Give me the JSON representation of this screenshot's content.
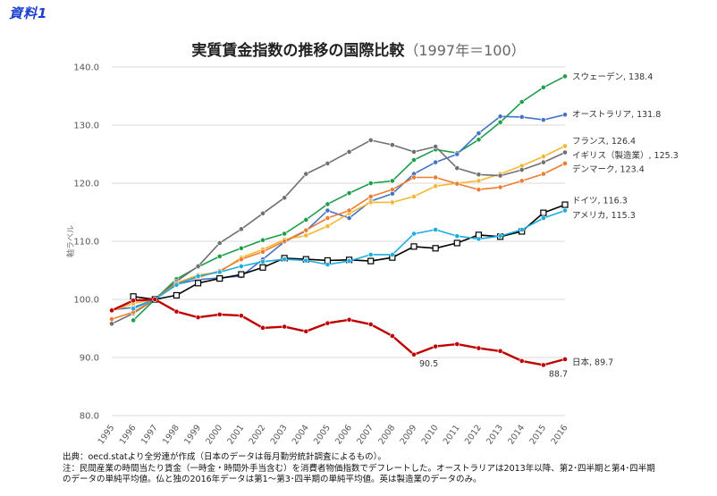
{
  "doc_label": "資料1",
  "chart_data": {
    "type": "line",
    "title": "実質賃金指数の推移の国際比較",
    "subtitle": "（1997年＝100）",
    "xlabel": "",
    "ylabel": "軸ラベル",
    "ylim": [
      80,
      140
    ],
    "yticks": [
      "80.0",
      "90.0",
      "100.0",
      "110.0",
      "120.0",
      "130.0",
      "140.0"
    ],
    "grid": true,
    "categories": [
      "1995",
      "1996",
      "1997",
      "1998",
      "1999",
      "2000",
      "2001",
      "2002",
      "2003",
      "2004",
      "2005",
      "2006",
      "2007",
      "2008",
      "2009",
      "2010",
      "2011",
      "2012",
      "2013",
      "2014",
      "2015",
      "2016"
    ],
    "series": [
      {
        "name": "スウェーデン",
        "end_label": "スウェーデン, 138.4",
        "color": "#1e9e4a",
        "marker": "dot",
        "values": [
          null,
          96.4,
          100.0,
          103.5,
          105.6,
          107.4,
          108.8,
          110.2,
          111.3,
          113.7,
          116.4,
          118.3,
          120.0,
          120.4,
          124.0,
          125.8,
          125.2,
          127.5,
          130.5,
          134.0,
          136.5,
          138.4
        ]
      },
      {
        "name": "オーストラリア",
        "end_label": "オーストラリア, 131.8",
        "color": "#4472c4",
        "marker": "dot",
        "values": [
          98.2,
          98.6,
          100.0,
          102.6,
          103.4,
          103.7,
          104.0,
          106.9,
          109.9,
          111.8,
          115.3,
          114.0,
          116.9,
          118.2,
          121.6,
          123.6,
          125.0,
          128.6,
          131.5,
          131.4,
          130.9,
          131.8
        ]
      },
      {
        "name": "フランス",
        "end_label": "フランス, 126.4",
        "color": "#f5b731",
        "marker": "dot",
        "values": [
          98.0,
          99.3,
          100.0,
          102.8,
          104.2,
          104.7,
          107.2,
          108.6,
          110.3,
          111.0,
          112.6,
          114.8,
          116.7,
          116.7,
          117.7,
          119.5,
          120.0,
          120.4,
          121.6,
          123.0,
          124.6,
          126.4
        ]
      },
      {
        "name": "イギリス（製造業）",
        "end_label": "イギリス（製造業）, 125.3",
        "color": "#707070",
        "marker": "dot",
        "values": [
          95.8,
          97.6,
          100.0,
          103.1,
          105.7,
          109.7,
          112.1,
          114.8,
          117.5,
          121.6,
          123.4,
          125.4,
          127.4,
          126.6,
          125.4,
          126.3,
          122.6,
          121.5,
          121.3,
          122.3,
          123.6,
          125.3
        ]
      },
      {
        "name": "デンマーク",
        "end_label": "デンマーク, 123.4",
        "color": "#ed7d31",
        "marker": "dot",
        "values": [
          96.6,
          97.8,
          100.0,
          102.8,
          103.8,
          104.9,
          106.9,
          108.2,
          110.0,
          111.9,
          114.0,
          115.3,
          117.7,
          118.9,
          121.0,
          121.0,
          119.9,
          118.9,
          119.3,
          120.4,
          121.6,
          123.4
        ]
      },
      {
        "name": "ドイツ",
        "end_label": "ドイツ, 116.3",
        "color": "#000000",
        "marker": "square",
        "values": [
          null,
          100.5,
          100.0,
          100.7,
          102.8,
          103.6,
          104.3,
          105.5,
          107.1,
          106.9,
          106.7,
          106.8,
          106.6,
          107.2,
          109.1,
          108.8,
          109.7,
          111.1,
          110.8,
          111.7,
          114.9,
          116.3
        ]
      },
      {
        "name": "アメリカ",
        "end_label": "アメリカ, 115.3",
        "color": "#1aaee0",
        "marker": "dot",
        "values": [
          null,
          98.4,
          100.0,
          102.5,
          104.0,
          104.7,
          105.7,
          106.5,
          106.9,
          106.7,
          106.0,
          106.6,
          107.7,
          107.7,
          111.3,
          112.0,
          110.9,
          110.4,
          110.9,
          112.0,
          114.0,
          115.3
        ]
      },
      {
        "name": "日本",
        "end_label": "日本, 89.7",
        "color": "#c00000",
        "marker": "dot",
        "values": [
          98.1,
          99.8,
          100.0,
          97.9,
          96.9,
          97.4,
          97.2,
          95.1,
          95.3,
          94.5,
          95.9,
          96.5,
          95.7,
          93.7,
          90.5,
          91.9,
          92.3,
          91.6,
          91.1,
          89.4,
          88.7,
          89.7
        ]
      }
    ],
    "annotations": [
      {
        "text": "90.5",
        "year": "2009",
        "value": 90.5
      },
      {
        "text": "88.7",
        "year": "2015",
        "value": 88.7
      }
    ]
  },
  "notes": [
    "出典：oecd.statより全労連が作成（日本のデータは毎月勤労統計調査によるもの）。",
    "注：民間産業の時間当たり賃金（一時金・時間外手当含む）を消費者物価指数でデフレートした。オーストラリアは2013年以降、第2･四半期と第4･四半期",
    "のデータの単純平均値。仏と独の2016年データは第1～第3･四半期の単純平均値。英は製造業のデータのみ。"
  ]
}
